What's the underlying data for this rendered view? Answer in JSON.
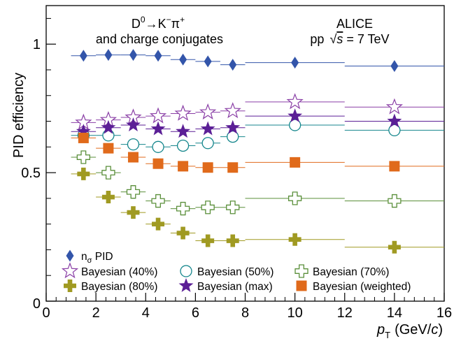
{
  "chart_data": {
    "type": "scatter",
    "ylabel": "PID efficiency",
    "xlabel_main": "p",
    "xlabel_sub": "T",
    "xlabel_unit_pre": "(GeV/",
    "xlabel_unit_c": "c",
    "xlabel_unit_post": ")",
    "xlim": [
      0,
      16
    ],
    "ylim": [
      0,
      1.15
    ],
    "xticks": [
      0,
      2,
      4,
      6,
      8,
      10,
      12,
      14,
      16
    ],
    "xtick_labels": [
      "0",
      "2",
      "4",
      "6",
      "8",
      "10",
      "12",
      "14",
      "16"
    ],
    "yticks": [
      0.5,
      1
    ],
    "ytick_labels": [
      "0.5",
      "1"
    ],
    "bins": [
      [
        1,
        2
      ],
      [
        2,
        3
      ],
      [
        3,
        4
      ],
      [
        4,
        5
      ],
      [
        5,
        6
      ],
      [
        6,
        7
      ],
      [
        7,
        8
      ],
      [
        8,
        12
      ],
      [
        12,
        16
      ]
    ],
    "annotation_left": {
      "line1_pre": "D",
      "line1_sup1": "0",
      "line1_mid": "→K",
      "line1_sup2": "−",
      "line1_post": "π",
      "line1_sup3": "+",
      "line2": "and charge conjugates"
    },
    "annotation_right": {
      "line1": "ALICE",
      "line2_pre": "pp",
      "line2_sqrt": "√",
      "line2_s": "s",
      "line2_post": " = 7 TeV"
    },
    "series": [
      {
        "key": "nsigma",
        "label_pre": "n",
        "label_sub": "σ",
        "label_post": " PID",
        "marker": "diamond",
        "color": "#3355aa",
        "values": [
          0.955,
          0.958,
          0.958,
          0.955,
          0.94,
          0.933,
          0.92,
          0.928,
          0.915
        ]
      },
      {
        "key": "bay40",
        "label": "Bayesian (40%)",
        "marker": "star-open",
        "color": "#8a3fa6",
        "values": [
          0.695,
          0.705,
          0.715,
          0.72,
          0.73,
          0.735,
          0.74,
          0.775,
          0.755
        ]
      },
      {
        "key": "bay50",
        "label": "Bayesian (50%)",
        "marker": "circle-open",
        "color": "#14868c",
        "values": [
          0.645,
          0.645,
          0.61,
          0.6,
          0.605,
          0.615,
          0.64,
          0.685,
          0.665
        ]
      },
      {
        "key": "bay70",
        "label": "Bayesian (70%)",
        "marker": "cross-open",
        "color": "#5a8f3a",
        "values": [
          0.56,
          0.5,
          0.425,
          0.39,
          0.36,
          0.365,
          0.365,
          0.4,
          0.39
        ]
      },
      {
        "key": "bay80",
        "label": "Bayesian (80%)",
        "marker": "cross-filled",
        "color": "#a09a22",
        "values": [
          0.495,
          0.405,
          0.345,
          0.3,
          0.265,
          0.235,
          0.235,
          0.24,
          0.21
        ]
      },
      {
        "key": "baymax",
        "label": "Bayesian (max)",
        "marker": "star-filled",
        "color": "#5b1f96",
        "values": [
          0.66,
          0.675,
          0.685,
          0.67,
          0.66,
          0.67,
          0.675,
          0.72,
          0.7
        ]
      },
      {
        "key": "bayw",
        "label": "Bayesian (weighted)",
        "marker": "square-filled",
        "color": "#e06a1b",
        "values": [
          0.635,
          0.595,
          0.56,
          0.535,
          0.525,
          0.52,
          0.52,
          0.54,
          0.525
        ]
      }
    ]
  }
}
